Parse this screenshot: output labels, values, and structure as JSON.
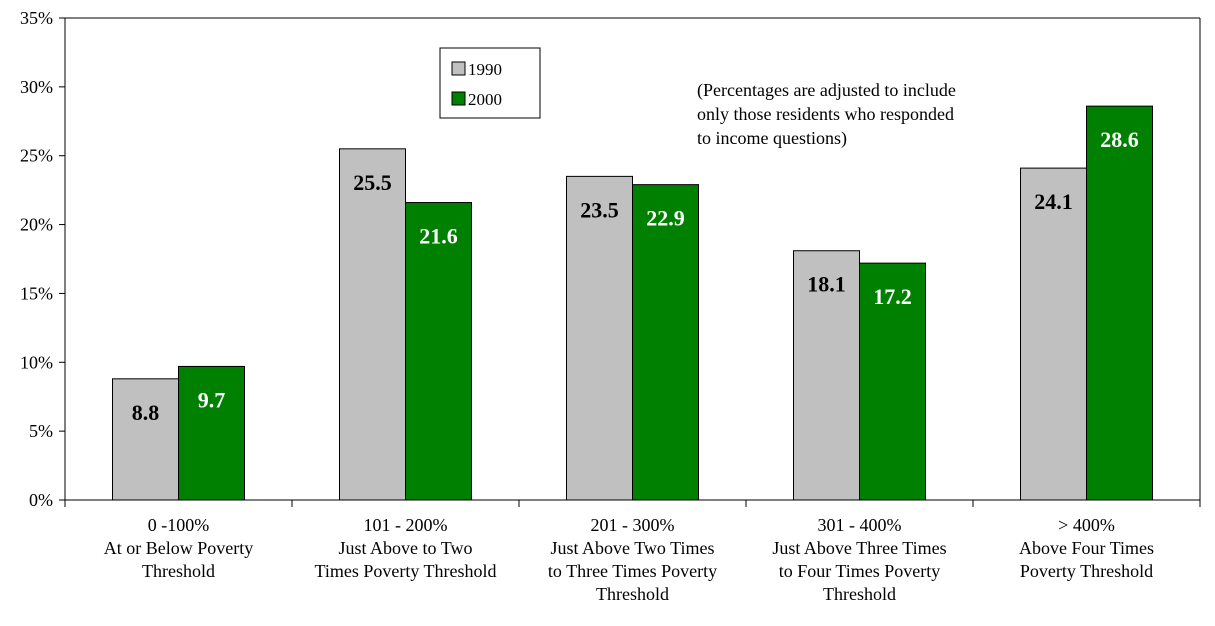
{
  "chart_data": {
    "type": "bar",
    "categories": [
      [
        "0 -100%",
        "At or Below Poverty",
        "Threshold"
      ],
      [
        "101 - 200%",
        "Just Above to Two",
        "Times Poverty Threshold"
      ],
      [
        "201 - 300%",
        "Just Above Two Times",
        "to Three Times Poverty",
        "Threshold"
      ],
      [
        "301 - 400%",
        "Just Above Three Times",
        "to Four Times Poverty",
        "Threshold"
      ],
      [
        "> 400%",
        "Above Four Times",
        "Poverty Threshold"
      ]
    ],
    "series": [
      {
        "name": "1990",
        "values": [
          8.8,
          25.5,
          23.5,
          18.1,
          24.1
        ],
        "color": "#c0c0c0",
        "label_color": "#000000"
      },
      {
        "name": "2000",
        "values": [
          9.7,
          21.6,
          22.9,
          17.2,
          28.6
        ],
        "color": "#008000",
        "label_color": "#ffffff"
      }
    ],
    "data_labels": [
      [
        "8.8",
        "25.5",
        "23.5",
        "18.1",
        "24.1"
      ],
      [
        "9.7",
        "21.6",
        "22.9",
        "17.2",
        "28.6"
      ]
    ],
    "ylim": [
      0,
      35
    ],
    "yticks": [
      0,
      5,
      10,
      15,
      20,
      25,
      30,
      35
    ],
    "ytick_labels": [
      "0%",
      "5%",
      "10%",
      "15%",
      "20%",
      "25%",
      "30%",
      "35%"
    ],
    "title": "",
    "xlabel": "",
    "ylabel": "",
    "grid": false,
    "legend_position": "top-center",
    "annotation": [
      "(Percentages are adjusted to include",
      "only those residents who responded",
      "to income questions)"
    ]
  }
}
